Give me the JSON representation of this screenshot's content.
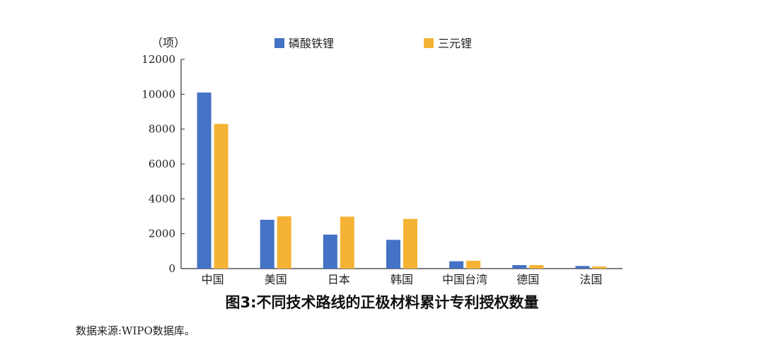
{
  "colors": {
    "series_1": "#4472C4",
    "series_2": "#F5B335",
    "axis": "#333333"
  },
  "chart_data": {
    "type": "bar",
    "unit_label": "（项）",
    "categories": [
      "中国",
      "美国",
      "日本",
      "韩国",
      "中国台湾",
      "德国",
      "法国"
    ],
    "series": [
      {
        "name": "磷酸铁锂",
        "values": [
          10100,
          2800,
          1950,
          1650,
          420,
          200,
          150
        ]
      },
      {
        "name": "三元锂",
        "values": [
          8300,
          3000,
          2980,
          2850,
          450,
          200,
          120
        ]
      }
    ],
    "ylim": [
      0,
      12000
    ],
    "yticks": [
      0,
      2000,
      4000,
      6000,
      8000,
      10000,
      12000
    ],
    "grid": false,
    "legend_position": "top-center"
  },
  "caption": "图3:不同技术路线的正极材料累计专利授权数量",
  "source": "数据来源:WIPO数据库。"
}
